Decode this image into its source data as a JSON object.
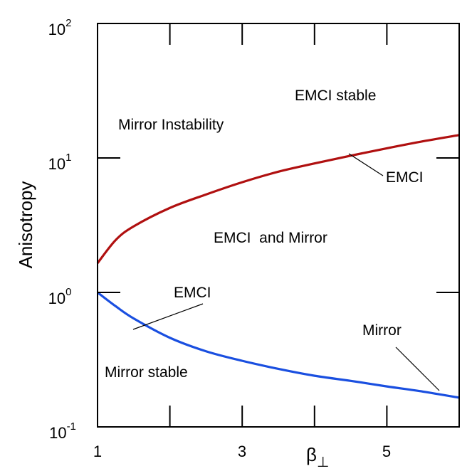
{
  "chart_data": {
    "type": "line",
    "title": "",
    "xlabel": "β",
    "xlabel_subscript": "⊥",
    "ylabel": "Anisotropy",
    "xlim": [
      1,
      6
    ],
    "ylim": [
      0.1,
      100
    ],
    "yscale": "log",
    "grid": false,
    "x_ticks": [
      1,
      3,
      5
    ],
    "y_ticks": [
      {
        "value": 100,
        "base": "10",
        "exp": "2"
      },
      {
        "value": 10,
        "base": "10",
        "exp": "1"
      },
      {
        "value": 1,
        "base": "10",
        "exp": "0"
      },
      {
        "value": 0.1,
        "base": "10",
        "exp": "-1"
      }
    ],
    "series": [
      {
        "color": "#b01010",
        "x": [
          1.0,
          1.25,
          1.5,
          2.0,
          2.5,
          3.0,
          3.5,
          4.0,
          4.5,
          5.0,
          5.5,
          6.0
        ],
        "y": [
          1.65,
          2.45,
          3.1,
          4.25,
          5.35,
          6.6,
          7.9,
          9.1,
          10.4,
          11.8,
          13.3,
          14.8
        ]
      },
      {
        "color": "#1a4fe0",
        "x": [
          1.0,
          1.25,
          1.5,
          2.0,
          2.5,
          3.0,
          3.5,
          4.0,
          4.5,
          5.0,
          5.5,
          6.0
        ],
        "y": [
          1.0,
          0.79,
          0.64,
          0.46,
          0.365,
          0.31,
          0.27,
          0.24,
          0.22,
          0.2,
          0.183,
          0.165
        ]
      }
    ],
    "annotations": {
      "emci_stable": "EMCI stable",
      "mirror_instability": "Mirror Instability",
      "emci_upper": "EMCI",
      "emci_and_mirror": "EMCI  and Mirror",
      "emci_lower": "EMCI",
      "mirror": "Mirror",
      "mirror_stable": "Mirror stable"
    }
  }
}
